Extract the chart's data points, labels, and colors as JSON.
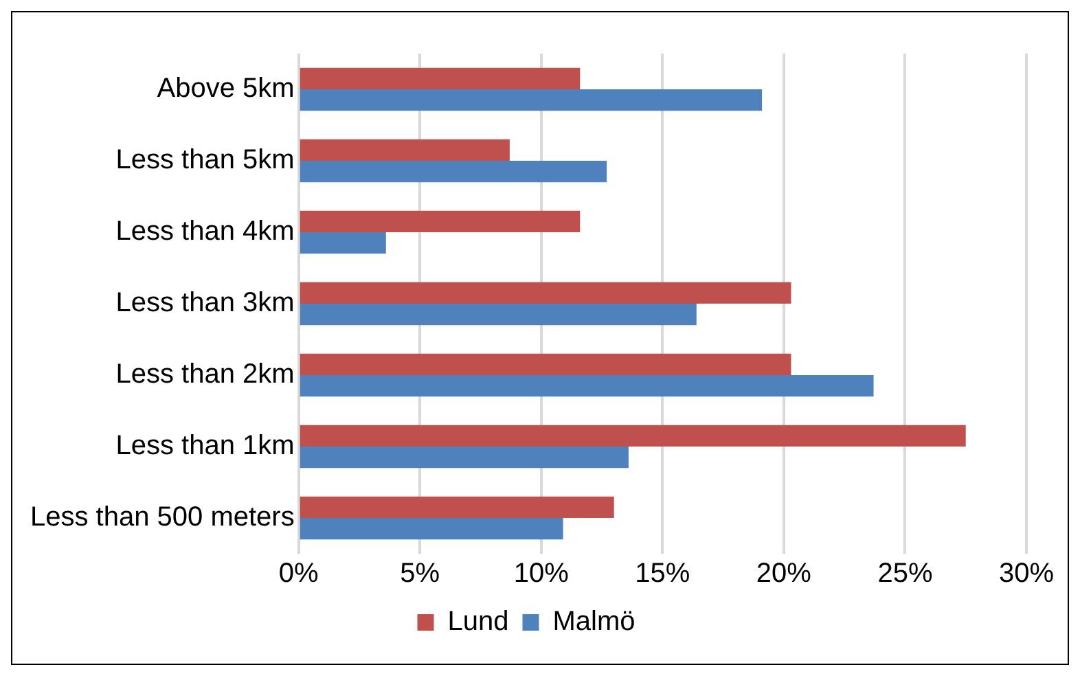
{
  "chart_data": {
    "type": "bar",
    "orientation": "horizontal",
    "categories": [
      "Above 5km",
      "Less than 5km",
      "Less than 4km",
      "Less than 3km",
      "Less than 2km",
      "Less than 1km",
      "Less than 500 meters"
    ],
    "series": [
      {
        "name": "Lund",
        "color": "#c0504d",
        "values": [
          11.6,
          8.7,
          11.6,
          20.3,
          20.3,
          27.5,
          13.0
        ]
      },
      {
        "name": "Malmö",
        "color": "#4f81bd",
        "values": [
          19.1,
          12.7,
          3.6,
          16.4,
          23.7,
          13.6,
          10.9
        ]
      }
    ],
    "xlim": [
      0,
      30
    ],
    "xticks": [
      {
        "value": 0,
        "label": "0%"
      },
      {
        "value": 5,
        "label": "5%"
      },
      {
        "value": 10,
        "label": "10%"
      },
      {
        "value": 15,
        "label": "15%"
      },
      {
        "value": 20,
        "label": "20%"
      },
      {
        "value": 25,
        "label": "25%"
      },
      {
        "value": 30,
        "label": "30%"
      }
    ],
    "grid": "x",
    "legend": "bottom"
  }
}
